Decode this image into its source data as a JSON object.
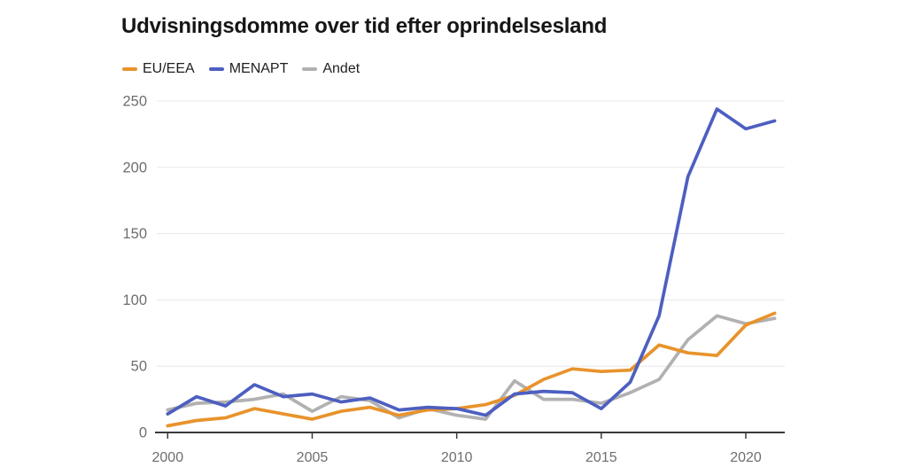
{
  "colors": {
    "background": "#FFFFFF",
    "title": "#161616",
    "legend_text": "#1F1F1F",
    "grid": "#E8E8E8",
    "axis": "#3A3A3A",
    "tick_label": "#6E6E6E"
  },
  "chart_data": {
    "type": "line",
    "title": "Udvisningsdomme over tid efter oprindelsesland",
    "x": [
      2000,
      2001,
      2002,
      2003,
      2004,
      2005,
      2006,
      2007,
      2008,
      2009,
      2010,
      2011,
      2012,
      2013,
      2014,
      2015,
      2016,
      2017,
      2018,
      2019,
      2020,
      2021
    ],
    "series": [
      {
        "name": "EU/EEA",
        "color": "#E8932C",
        "values": [
          5,
          9,
          11,
          18,
          14,
          10,
          16,
          19,
          13,
          17,
          18,
          21,
          28,
          40,
          48,
          46,
          47,
          66,
          60,
          58,
          81,
          90
        ]
      },
      {
        "name": "MENAPT",
        "color": "#4D5FC0",
        "values": [
          14,
          27,
          20,
          36,
          27,
          29,
          23,
          26,
          17,
          19,
          18,
          13,
          29,
          31,
          30,
          18,
          38,
          88,
          193,
          244,
          229,
          235
        ]
      },
      {
        "name": "Andet",
        "color": "#B1B1B1",
        "values": [
          17,
          22,
          23,
          25,
          29,
          16,
          27,
          24,
          11,
          18,
          13,
          10,
          39,
          25,
          25,
          22,
          30,
          40,
          70,
          88,
          82,
          86
        ]
      }
    ],
    "draw_order": [
      "Andet",
      "EU/EEA",
      "MENAPT"
    ],
    "xticks": [
      2000,
      2005,
      2010,
      2015,
      2020
    ],
    "yticks": [
      0,
      50,
      100,
      150,
      200,
      250
    ],
    "xlim": [
      2000,
      2021
    ],
    "ylim": [
      0,
      250
    ],
    "grid": "horizontal-only",
    "legend_position": "top-left"
  }
}
